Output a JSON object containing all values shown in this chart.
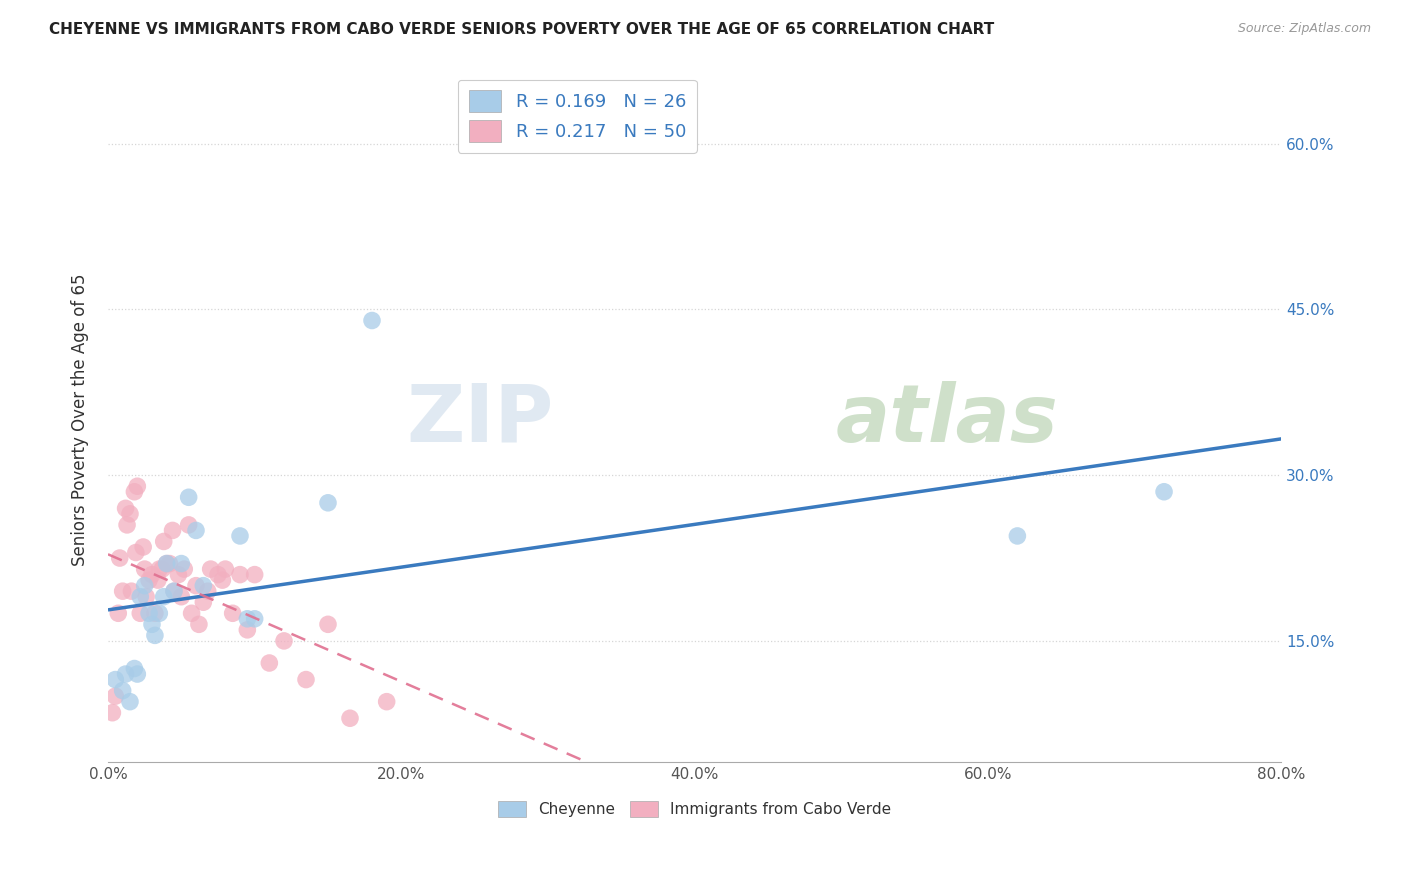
{
  "title": "CHEYENNE VS IMMIGRANTS FROM CABO VERDE SENIORS POVERTY OVER THE AGE OF 65 CORRELATION CHART",
  "source": "Source: ZipAtlas.com",
  "ylabel": "Seniors Poverty Over the Age of 65",
  "xlabel_cheyenne": "Cheyenne",
  "xlabel_cabo": "Immigrants from Cabo Verde",
  "R_cheyenne": 0.169,
  "N_cheyenne": 26,
  "R_cabo": 0.217,
  "N_cabo": 50,
  "xlim": [
    0.0,
    0.8
  ],
  "ylim": [
    0.04,
    0.66
  ],
  "xticks": [
    0.0,
    0.2,
    0.4,
    0.6,
    0.8
  ],
  "xticklabels": [
    "0.0%",
    "20.0%",
    "40.0%",
    "60.0%",
    "80.0%"
  ],
  "yticks": [
    0.15,
    0.3,
    0.45,
    0.6
  ],
  "yticklabels": [
    "15.0%",
    "30.0%",
    "45.0%",
    "60.0%"
  ],
  "color_cheyenne": "#a8cce8",
  "color_cabo": "#f2afc0",
  "line_color_cheyenne": "#3a7abf",
  "line_color_cabo": "#e07090",
  "watermark_zip": "ZIP",
  "watermark_atlas": "atlas",
  "cheyenne_x": [
    0.005,
    0.01,
    0.012,
    0.015,
    0.018,
    0.02,
    0.022,
    0.025,
    0.028,
    0.03,
    0.032,
    0.035,
    0.038,
    0.04,
    0.045,
    0.05,
    0.055,
    0.06,
    0.065,
    0.09,
    0.095,
    0.1,
    0.15,
    0.18,
    0.62,
    0.72
  ],
  "cheyenne_y": [
    0.115,
    0.105,
    0.12,
    0.095,
    0.125,
    0.12,
    0.19,
    0.2,
    0.175,
    0.165,
    0.155,
    0.175,
    0.19,
    0.22,
    0.195,
    0.22,
    0.28,
    0.25,
    0.2,
    0.245,
    0.17,
    0.17,
    0.275,
    0.44,
    0.245,
    0.285
  ],
  "cabo_x": [
    0.003,
    0.005,
    0.007,
    0.008,
    0.01,
    0.012,
    0.013,
    0.015,
    0.016,
    0.018,
    0.019,
    0.02,
    0.022,
    0.024,
    0.025,
    0.026,
    0.028,
    0.03,
    0.032,
    0.034,
    0.035,
    0.037,
    0.038,
    0.04,
    0.042,
    0.044,
    0.045,
    0.048,
    0.05,
    0.052,
    0.055,
    0.057,
    0.06,
    0.062,
    0.065,
    0.068,
    0.07,
    0.075,
    0.078,
    0.08,
    0.085,
    0.09,
    0.095,
    0.1,
    0.11,
    0.12,
    0.135,
    0.15,
    0.165,
    0.19
  ],
  "cabo_y": [
    0.085,
    0.1,
    0.175,
    0.225,
    0.195,
    0.27,
    0.255,
    0.265,
    0.195,
    0.285,
    0.23,
    0.29,
    0.175,
    0.235,
    0.215,
    0.19,
    0.205,
    0.21,
    0.175,
    0.205,
    0.215,
    0.215,
    0.24,
    0.22,
    0.22,
    0.25,
    0.195,
    0.21,
    0.19,
    0.215,
    0.255,
    0.175,
    0.2,
    0.165,
    0.185,
    0.195,
    0.215,
    0.21,
    0.205,
    0.215,
    0.175,
    0.21,
    0.16,
    0.21,
    0.13,
    0.15,
    0.115,
    0.165,
    0.08,
    0.095
  ]
}
